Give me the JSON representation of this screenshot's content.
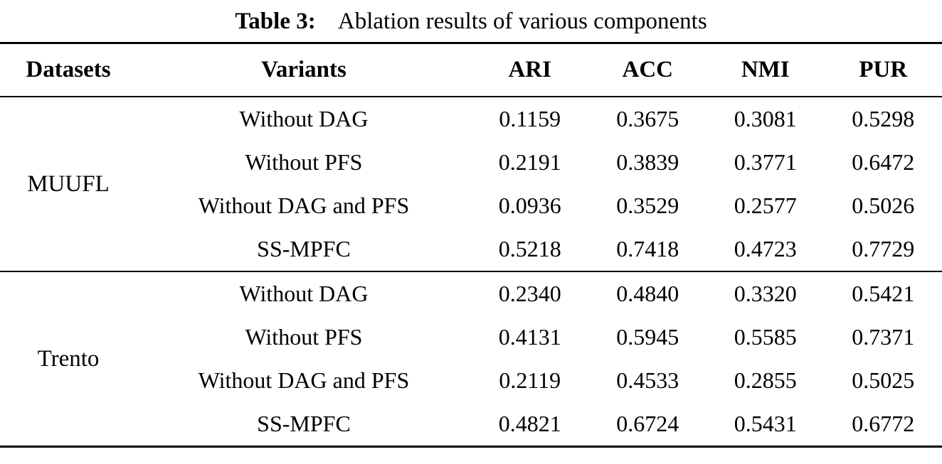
{
  "caption": {
    "label": "Table 3:",
    "text": "Ablation results of various components"
  },
  "table": {
    "columns": {
      "datasets": "Datasets",
      "variants": "Variants",
      "ari": "ARI",
      "acc": "ACC",
      "nmi": "NMI",
      "pur": "PUR"
    },
    "sections": [
      {
        "dataset": "MUUFL",
        "rows": [
          {
            "variant": "Without DAG",
            "values": [
              "0.1159",
              "0.3675",
              "0.3081",
              "0.5298"
            ]
          },
          {
            "variant": "Without PFS",
            "values": [
              "0.2191",
              "0.3839",
              "0.3771",
              "0.6472"
            ]
          },
          {
            "variant": "Without DAG and PFS",
            "values": [
              "0.0936",
              "0.3529",
              "0.2577",
              "0.5026"
            ]
          },
          {
            "variant": "SS-MPFC",
            "values": [
              "0.5218",
              "0.7418",
              "0.4723",
              "0.7729"
            ]
          }
        ]
      },
      {
        "dataset": "Trento",
        "rows": [
          {
            "variant": "Without DAG",
            "values": [
              "0.2340",
              "0.4840",
              "0.3320",
              "0.5421"
            ]
          },
          {
            "variant": "Without PFS",
            "values": [
              "0.4131",
              "0.5945",
              "0.5585",
              "0.7371"
            ]
          },
          {
            "variant": "Without DAG and PFS",
            "values": [
              "0.2119",
              "0.4533",
              "0.2855",
              "0.5025"
            ]
          },
          {
            "variant": "SS-MPFC",
            "values": [
              "0.4821",
              "0.6724",
              "0.5431",
              "0.6772"
            ]
          }
        ]
      }
    ]
  },
  "colors": {
    "text": "#000000",
    "background": "#ffffff",
    "rule": "#000000"
  }
}
